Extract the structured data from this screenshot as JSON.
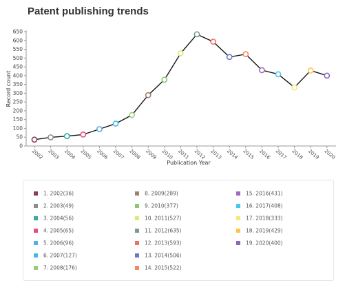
{
  "chart_data": {
    "type": "line",
    "title": "Patent publishing trends",
    "xlabel": "Publication Year",
    "ylabel": "Record count",
    "ylim": [
      0,
      650
    ],
    "yticks": [
      0,
      50,
      100,
      150,
      200,
      250,
      300,
      350,
      400,
      450,
      500,
      550,
      600,
      650
    ],
    "grid": false,
    "legend_position": "bottom",
    "categories": [
      "2002",
      "2003",
      "2004",
      "2005",
      "2006",
      "2007",
      "2008",
      "2009",
      "2010",
      "2011",
      "2012",
      "2013",
      "2014",
      "2015",
      "2016",
      "2017",
      "2018",
      "2019",
      "2020"
    ],
    "series": [
      {
        "values": [
          36,
          49,
          56,
          65,
          96,
          127,
          176,
          289,
          377,
          527,
          635,
          593,
          506,
          522,
          431,
          408,
          333,
          429,
          400
        ]
      }
    ],
    "point_colors": [
      "#8b3a62",
      "#8c8c8c",
      "#3aa89c",
      "#e0507a",
      "#5aaee0",
      "#48b8e0",
      "#9ccc7a",
      "#a08070",
      "#8cc870",
      "#e0e878",
      "#7a9a9a",
      "#f07068",
      "#6a78c8",
      "#f08860",
      "#a068c0",
      "#48c8e8",
      "#f8e878",
      "#f8c848",
      "#8868b8"
    ],
    "legend": [
      "1. 2002(36)",
      "2. 2003(49)",
      "3. 2004(56)",
      "4. 2005(65)",
      "5. 2006(96)",
      "6. 2007(127)",
      "7. 2008(176)",
      "8. 2009(289)",
      "9. 2010(377)",
      "10. 2011(527)",
      "11. 2012(635)",
      "12. 2013(593)",
      "13. 2014(506)",
      "14. 2015(522)",
      "15. 2016(431)",
      "16. 2017(408)",
      "17. 2018(333)",
      "18. 2019(429)",
      "19. 2020(400)"
    ]
  }
}
